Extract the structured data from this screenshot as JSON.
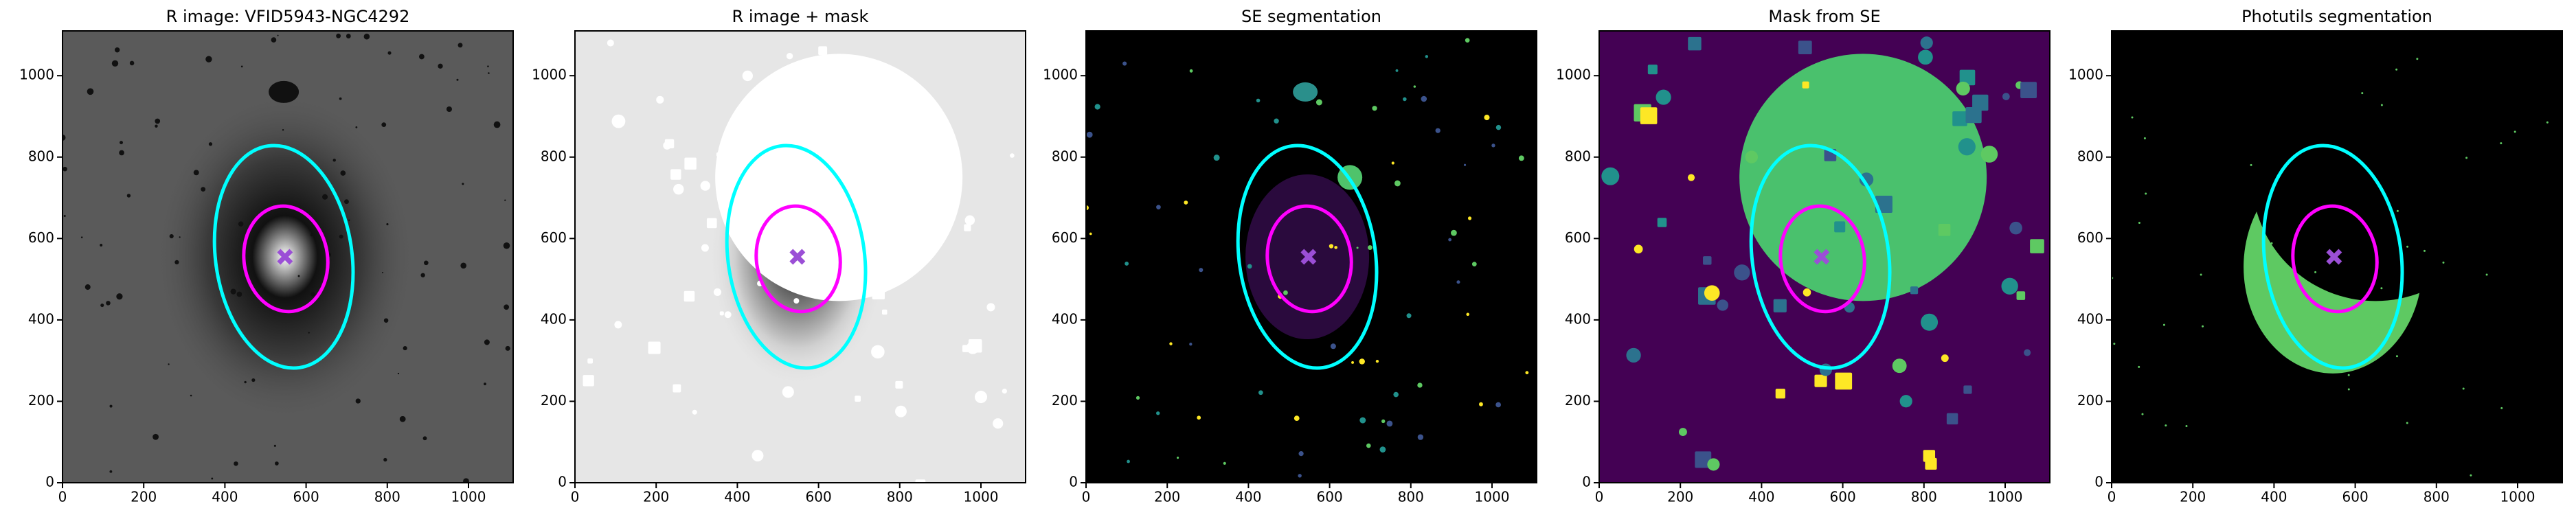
{
  "chart_data": [
    {
      "type": "image",
      "title": "R image: VFID5943-NGC4292",
      "background": "#5a5a5a",
      "xlim": [
        0,
        1110
      ],
      "ylim": [
        0,
        1110
      ],
      "xticks": [
        0,
        200,
        400,
        600,
        800,
        1000
      ],
      "yticks": [
        0,
        200,
        400,
        600,
        800,
        1000
      ],
      "ellipses": [
        {
          "cx": 545,
          "cy": 555,
          "rx": 168,
          "ry": 275,
          "angle": 8,
          "color": "#00ffff"
        },
        {
          "cx": 550,
          "cy": 550,
          "rx": 103,
          "ry": 130,
          "angle": 8,
          "color": "#ff00ff"
        }
      ],
      "marker": {
        "x": 548,
        "y": 555,
        "color": "#9b4fd6"
      }
    },
    {
      "type": "image",
      "title": "R image + mask",
      "background": "#e6e6e6",
      "xlim": [
        0,
        1110
      ],
      "ylim": [
        0,
        1110
      ],
      "xticks": [
        0,
        200,
        400,
        600,
        800,
        1000
      ],
      "yticks": [
        0,
        200,
        400,
        600,
        800,
        1000
      ],
      "ellipses": [
        {
          "cx": 545,
          "cy": 555,
          "rx": 168,
          "ry": 275,
          "angle": 8,
          "color": "#00ffff"
        },
        {
          "cx": 550,
          "cy": 550,
          "rx": 103,
          "ry": 130,
          "angle": 8,
          "color": "#ff00ff"
        }
      ],
      "marker": {
        "x": 548,
        "y": 555,
        "color": "#9b4fd6"
      }
    },
    {
      "type": "image",
      "title": "SE segmentation",
      "background": "#000000",
      "xlim": [
        0,
        1110
      ],
      "ylim": [
        0,
        1110
      ],
      "xticks": [
        0,
        200,
        400,
        600,
        800,
        1000
      ],
      "yticks": [
        0,
        200,
        400,
        600,
        800,
        1000
      ],
      "ellipses": [
        {
          "cx": 545,
          "cy": 555,
          "rx": 168,
          "ry": 275,
          "angle": 8,
          "color": "#00ffff"
        },
        {
          "cx": 550,
          "cy": 550,
          "rx": 103,
          "ry": 130,
          "angle": 8,
          "color": "#ff00ff"
        }
      ],
      "marker": {
        "x": 548,
        "y": 555,
        "color": "#9b4fd6"
      }
    },
    {
      "type": "image",
      "title": "Mask from SE",
      "background": "#440154",
      "xlim": [
        0,
        1110
      ],
      "ylim": [
        0,
        1110
      ],
      "xticks": [
        0,
        200,
        400,
        600,
        800,
        1000
      ],
      "yticks": [
        0,
        200,
        400,
        600,
        800,
        1000
      ],
      "ellipses": [
        {
          "cx": 545,
          "cy": 555,
          "rx": 168,
          "ry": 275,
          "angle": 8,
          "color": "#00ffff"
        },
        {
          "cx": 550,
          "cy": 550,
          "rx": 103,
          "ry": 130,
          "angle": 8,
          "color": "#ff00ff"
        }
      ],
      "marker": {
        "x": 548,
        "y": 555,
        "color": "#9b4fd6"
      }
    },
    {
      "type": "image",
      "title": "Photutils segmentation",
      "background": "#000000",
      "xlim": [
        0,
        1110
      ],
      "ylim": [
        0,
        1110
      ],
      "xticks": [
        0,
        200,
        400,
        600,
        800,
        1000
      ],
      "yticks": [
        0,
        200,
        400,
        600,
        800,
        1000
      ],
      "ellipses": [
        {
          "cx": 545,
          "cy": 555,
          "rx": 168,
          "ry": 275,
          "angle": 8,
          "color": "#00ffff"
        },
        {
          "cx": 550,
          "cy": 550,
          "rx": 103,
          "ry": 130,
          "angle": 8,
          "color": "#ff00ff"
        }
      ],
      "marker": {
        "x": 548,
        "y": 555,
        "color": "#9b4fd6"
      }
    }
  ]
}
